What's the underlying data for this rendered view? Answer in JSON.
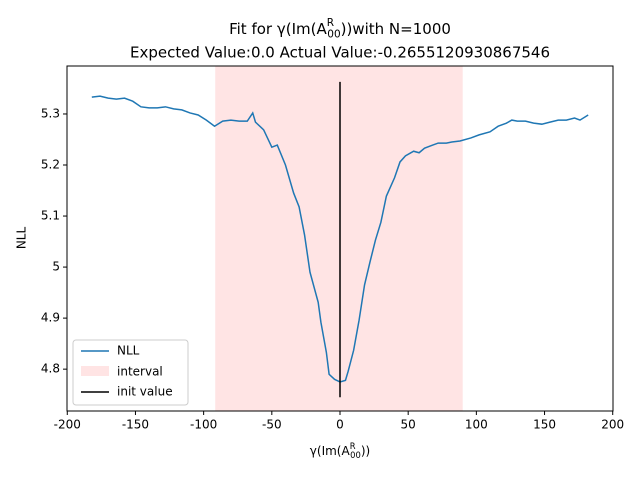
{
  "chart_data": {
    "type": "line",
    "title": {
      "before": "Fit for γ(Im(A",
      "sup": "R",
      "sub": "00",
      "after": "))with N=1000"
    },
    "subtitle": "Expected Value:0.0 Actual Value:-0.2655120930867546",
    "xlabel": {
      "before": "γ(Im(A",
      "sup": "R",
      "sub": "00",
      "after": "))"
    },
    "ylabel": "NLL",
    "xlim": [
      -200.2,
      200.2
    ],
    "ylim": [
      4.718,
      5.394
    ],
    "xticks": [
      -200,
      -150,
      -100,
      -50,
      0,
      50,
      100,
      150,
      200
    ],
    "yticks": [
      4.8,
      4.9,
      5.0,
      5.1,
      5.2,
      5.3
    ],
    "x": [
      -182,
      -176,
      -170,
      -164,
      -158,
      -152,
      -146,
      -140,
      -134,
      -128,
      -122,
      -116,
      -110,
      -104,
      -98,
      -92,
      -86,
      -80,
      -74,
      -68,
      -64,
      -62,
      -56,
      -50,
      -46,
      -40,
      -34,
      -30,
      -26,
      -22,
      -16,
      -14,
      -10,
      -8,
      -4,
      0,
      4,
      6,
      10,
      14,
      18,
      22,
      26,
      30,
      34,
      40,
      44,
      48,
      54,
      58,
      62,
      68,
      72,
      78,
      82,
      88,
      96,
      102,
      110,
      116,
      122,
      126,
      130,
      136,
      142,
      148,
      154,
      160,
      166,
      172,
      176,
      182
    ],
    "series": [
      {
        "name": "NLL",
        "color": "#1f77b4",
        "values": [
          5.333,
          5.335,
          5.331,
          5.329,
          5.331,
          5.325,
          5.314,
          5.312,
          5.312,
          5.314,
          5.31,
          5.308,
          5.302,
          5.298,
          5.288,
          5.276,
          5.286,
          5.288,
          5.286,
          5.286,
          5.302,
          5.284,
          5.269,
          5.235,
          5.239,
          5.2,
          5.145,
          5.118,
          5.063,
          4.99,
          4.931,
          4.892,
          4.833,
          4.79,
          4.78,
          4.775,
          4.778,
          4.796,
          4.837,
          4.896,
          4.965,
          5.01,
          5.053,
          5.088,
          5.139,
          5.175,
          5.206,
          5.218,
          5.227,
          5.224,
          5.233,
          5.239,
          5.243,
          5.243,
          5.245,
          5.247,
          5.253,
          5.259,
          5.265,
          5.276,
          5.282,
          5.288,
          5.286,
          5.286,
          5.282,
          5.28,
          5.284,
          5.288,
          5.288,
          5.292,
          5.288,
          5.298
        ]
      }
    ],
    "interval": {
      "label": "interval",
      "xmin": -91.5,
      "xmax": 90,
      "color": "#ffe4e4"
    },
    "init_value": {
      "label": "init value",
      "x": 0,
      "ymin": 4.745,
      "ymax": 5.363,
      "color": "#000000"
    },
    "legend": "lower left"
  }
}
